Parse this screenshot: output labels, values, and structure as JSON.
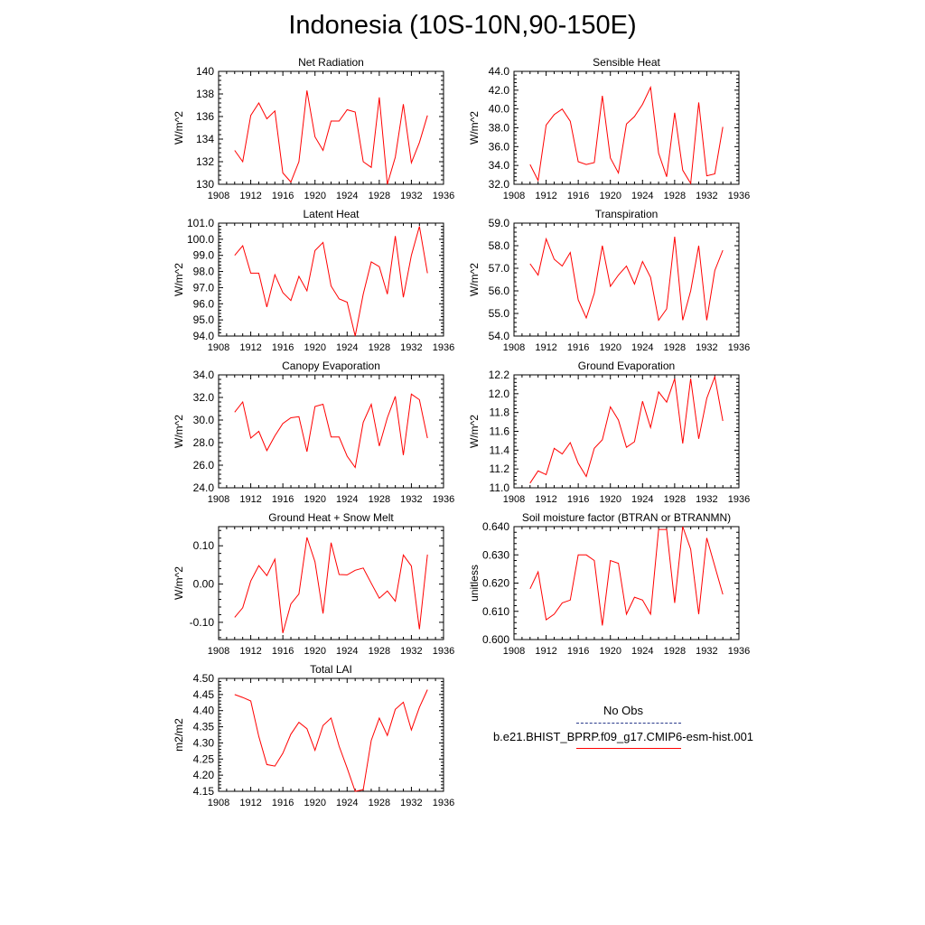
{
  "title": "Indonesia (10S-10N,90-150E)",
  "legend": {
    "obs_label": "No Obs",
    "model_label": "b.e21.BHIST_BPRP.f09_g17.CMIP6-esm-hist.001",
    "model_color": "#ff0000",
    "obs_color": "#2a3a8c"
  },
  "chart_data": [
    {
      "type": "line",
      "title": "Net Radiation",
      "ylabel": "W/m^2",
      "xlim": [
        1908,
        1936
      ],
      "xticks": [
        1908,
        1912,
        1916,
        1920,
        1924,
        1928,
        1932,
        1936
      ],
      "ylim": [
        130,
        140
      ],
      "yticks": [
        130,
        132,
        134,
        136,
        138,
        140
      ],
      "ytick_labels": [
        "130",
        "132",
        "134",
        "136",
        "138",
        "140"
      ],
      "x": [
        1910,
        1911,
        1912,
        1913,
        1914,
        1915,
        1916,
        1917,
        1918,
        1919,
        1920,
        1921,
        1922,
        1923,
        1924,
        1925,
        1926,
        1927,
        1928,
        1929,
        1930,
        1931,
        1932,
        1933,
        1934
      ],
      "series": [
        {
          "values": [
            133.0,
            132.0,
            136.1,
            137.2,
            135.8,
            136.5,
            131.0,
            130.2,
            132.0,
            138.3,
            134.2,
            133.0,
            135.6,
            135.6,
            136.6,
            136.4,
            132.0,
            131.5,
            137.7,
            130.0,
            132.4,
            137.1,
            131.9,
            133.7,
            136.1
          ]
        }
      ]
    },
    {
      "type": "line",
      "title": "Sensible Heat",
      "ylabel": "W/m^2",
      "xlim": [
        1908,
        1936
      ],
      "xticks": [
        1908,
        1912,
        1916,
        1920,
        1924,
        1928,
        1932,
        1936
      ],
      "ylim": [
        32,
        44
      ],
      "yticks": [
        32,
        34,
        36,
        38,
        40,
        42,
        44
      ],
      "ytick_labels": [
        "32.0",
        "34.0",
        "36.0",
        "38.0",
        "40.0",
        "42.0",
        "44.0"
      ],
      "x": [
        1910,
        1911,
        1912,
        1913,
        1914,
        1915,
        1916,
        1917,
        1918,
        1919,
        1920,
        1921,
        1922,
        1923,
        1924,
        1925,
        1926,
        1927,
        1928,
        1929,
        1930,
        1931,
        1932,
        1933,
        1934
      ],
      "series": [
        {
          "values": [
            34.1,
            32.4,
            38.3,
            39.4,
            40.0,
            38.7,
            34.4,
            34.1,
            34.3,
            41.4,
            34.8,
            33.2,
            38.4,
            39.2,
            40.5,
            42.3,
            35.3,
            32.8,
            39.6,
            33.5,
            32.1,
            40.7,
            32.9,
            33.1,
            38.1
          ]
        }
      ]
    },
    {
      "type": "line",
      "title": "Latent Heat",
      "ylabel": "W/m^2",
      "xlim": [
        1908,
        1936
      ],
      "xticks": [
        1908,
        1912,
        1916,
        1920,
        1924,
        1928,
        1932,
        1936
      ],
      "ylim": [
        94,
        101
      ],
      "yticks": [
        94,
        95,
        96,
        97,
        98,
        99,
        100,
        101
      ],
      "ytick_labels": [
        "94.0",
        "95.0",
        "96.0",
        "97.0",
        "98.0",
        "99.0",
        "100.0",
        "101.0"
      ],
      "x": [
        1910,
        1911,
        1912,
        1913,
        1914,
        1915,
        1916,
        1917,
        1918,
        1919,
        1920,
        1921,
        1922,
        1923,
        1924,
        1925,
        1926,
        1927,
        1928,
        1929,
        1930,
        1931,
        1932,
        1933,
        1934
      ],
      "series": [
        {
          "values": [
            99.0,
            99.6,
            97.9,
            97.9,
            95.8,
            97.8,
            96.7,
            96.2,
            97.7,
            96.8,
            99.3,
            99.8,
            97.1,
            96.3,
            96.1,
            94.0,
            96.6,
            98.6,
            98.3,
            96.6,
            100.2,
            96.4,
            99.0,
            100.8,
            97.9
          ]
        }
      ]
    },
    {
      "type": "line",
      "title": "Transpiration",
      "ylabel": "W/m^2",
      "xlim": [
        1908,
        1936
      ],
      "xticks": [
        1908,
        1912,
        1916,
        1920,
        1924,
        1928,
        1932,
        1936
      ],
      "ylim": [
        54,
        59
      ],
      "yticks": [
        54,
        55,
        56,
        57,
        58,
        59
      ],
      "ytick_labels": [
        "54.0",
        "55.0",
        "56.0",
        "57.0",
        "58.0",
        "59.0"
      ],
      "x": [
        1910,
        1911,
        1912,
        1913,
        1914,
        1915,
        1916,
        1917,
        1918,
        1919,
        1920,
        1921,
        1922,
        1923,
        1924,
        1925,
        1926,
        1927,
        1928,
        1929,
        1930,
        1931,
        1932,
        1933,
        1934
      ],
      "series": [
        {
          "values": [
            57.2,
            56.7,
            58.3,
            57.4,
            57.1,
            57.7,
            55.6,
            54.8,
            55.9,
            58.0,
            56.2,
            56.7,
            57.1,
            56.3,
            57.3,
            56.6,
            54.7,
            55.2,
            58.4,
            54.7,
            56.0,
            58.0,
            54.7,
            56.9,
            57.8
          ]
        }
      ]
    },
    {
      "type": "line",
      "title": "Canopy Evaporation",
      "ylabel": "W/m^2",
      "xlim": [
        1908,
        1936
      ],
      "xticks": [
        1908,
        1912,
        1916,
        1920,
        1924,
        1928,
        1932,
        1936
      ],
      "ylim": [
        24,
        34
      ],
      "yticks": [
        24,
        26,
        28,
        30,
        32,
        34
      ],
      "ytick_labels": [
        "24.0",
        "26.0",
        "28.0",
        "30.0",
        "32.0",
        "34.0"
      ],
      "x": [
        1910,
        1911,
        1912,
        1913,
        1914,
        1915,
        1916,
        1917,
        1918,
        1919,
        1920,
        1921,
        1922,
        1923,
        1924,
        1925,
        1926,
        1927,
        1928,
        1929,
        1930,
        1931,
        1932,
        1933,
        1934
      ],
      "series": [
        {
          "values": [
            30.7,
            31.6,
            28.4,
            29.0,
            27.3,
            28.6,
            29.7,
            30.2,
            30.3,
            27.2,
            31.2,
            31.4,
            28.5,
            28.5,
            26.8,
            25.8,
            29.8,
            31.4,
            27.7,
            30.2,
            32.1,
            26.9,
            32.3,
            31.8,
            28.4
          ]
        }
      ]
    },
    {
      "type": "line",
      "title": "Ground Evaporation",
      "ylabel": "W/m^2",
      "xlim": [
        1908,
        1936
      ],
      "xticks": [
        1908,
        1912,
        1916,
        1920,
        1924,
        1928,
        1932,
        1936
      ],
      "ylim": [
        11.0,
        12.2
      ],
      "yticks": [
        11.0,
        11.2,
        11.4,
        11.6,
        11.8,
        12.0,
        12.2
      ],
      "ytick_labels": [
        "11.0",
        "11.2",
        "11.4",
        "11.6",
        "11.8",
        "12.0",
        "12.2"
      ],
      "x": [
        1910,
        1911,
        1912,
        1913,
        1914,
        1915,
        1916,
        1917,
        1918,
        1919,
        1920,
        1921,
        1922,
        1923,
        1924,
        1925,
        1926,
        1927,
        1928,
        1929,
        1930,
        1931,
        1932,
        1933,
        1934
      ],
      "series": [
        {
          "values": [
            11.05,
            11.18,
            11.14,
            11.42,
            11.36,
            11.48,
            11.26,
            11.12,
            11.42,
            11.51,
            11.86,
            11.72,
            11.43,
            11.49,
            11.92,
            11.64,
            12.02,
            11.91,
            12.16,
            11.47,
            12.16,
            11.52,
            11.95,
            12.18,
            11.71
          ]
        }
      ]
    },
    {
      "type": "line",
      "title": "Ground Heat + Snow Melt",
      "ylabel": "W/m^2",
      "xlim": [
        1908,
        1936
      ],
      "xticks": [
        1908,
        1912,
        1916,
        1920,
        1924,
        1928,
        1932,
        1936
      ],
      "ylim": [
        -0.145,
        0.15
      ],
      "yticks": [
        -0.1,
        0.0,
        0.1
      ],
      "ytick_labels": [
        "-0.10",
        "0.00",
        "0.10"
      ],
      "x": [
        1910,
        1911,
        1912,
        1913,
        1914,
        1915,
        1916,
        1917,
        1918,
        1919,
        1920,
        1921,
        1922,
        1923,
        1924,
        1925,
        1926,
        1927,
        1928,
        1929,
        1930,
        1931,
        1932,
        1933,
        1934
      ],
      "series": [
        {
          "values": [
            -0.087,
            -0.062,
            0.008,
            0.048,
            0.022,
            0.065,
            -0.128,
            -0.052,
            -0.026,
            0.122,
            0.058,
            -0.077,
            0.108,
            0.025,
            0.024,
            0.036,
            0.042,
            0.002,
            -0.037,
            -0.018,
            -0.045,
            0.076,
            0.047,
            -0.118,
            0.077
          ]
        }
      ]
    },
    {
      "type": "line",
      "title": "Soil moisture factor (BTRAN or BTRANMN)",
      "ylabel": "unitless",
      "xlim": [
        1908,
        1936
      ],
      "xticks": [
        1908,
        1912,
        1916,
        1920,
        1924,
        1928,
        1932,
        1936
      ],
      "ylim": [
        0.6,
        0.64
      ],
      "yticks": [
        0.6,
        0.61,
        0.62,
        0.63,
        0.64
      ],
      "ytick_labels": [
        "0.600",
        "0.610",
        "0.620",
        "0.630",
        "0.640"
      ],
      "x": [
        1910,
        1911,
        1912,
        1913,
        1914,
        1915,
        1916,
        1917,
        1918,
        1919,
        1920,
        1921,
        1922,
        1923,
        1924,
        1925,
        1926,
        1927,
        1928,
        1929,
        1930,
        1931,
        1932,
        1933,
        1934
      ],
      "series": [
        {
          "values": [
            0.618,
            0.624,
            0.607,
            0.609,
            0.613,
            0.614,
            0.63,
            0.63,
            0.628,
            0.605,
            0.628,
            0.627,
            0.609,
            0.615,
            0.614,
            0.609,
            0.639,
            0.639,
            0.613,
            0.64,
            0.632,
            0.609,
            0.636,
            0.626,
            0.616
          ]
        }
      ]
    },
    {
      "type": "line",
      "title": "Total LAI",
      "ylabel": "m2/m2",
      "xlim": [
        1908,
        1936
      ],
      "xticks": [
        1908,
        1912,
        1916,
        1920,
        1924,
        1928,
        1932,
        1936
      ],
      "ylim": [
        4.15,
        4.5
      ],
      "yticks": [
        4.15,
        4.2,
        4.25,
        4.3,
        4.35,
        4.4,
        4.45,
        4.5
      ],
      "ytick_labels": [
        "4.15",
        "4.20",
        "4.25",
        "4.30",
        "4.35",
        "4.40",
        "4.45",
        "4.50"
      ],
      "x": [
        1910,
        1911,
        1912,
        1913,
        1914,
        1915,
        1916,
        1917,
        1918,
        1919,
        1920,
        1921,
        1922,
        1923,
        1924,
        1925,
        1926,
        1927,
        1928,
        1929,
        1930,
        1931,
        1932,
        1933,
        1934
      ],
      "series": [
        {
          "values": [
            4.45,
            4.441,
            4.43,
            4.32,
            4.233,
            4.228,
            4.268,
            4.327,
            4.364,
            4.344,
            4.277,
            4.354,
            4.377,
            4.29,
            4.222,
            4.15,
            4.155,
            4.308,
            4.377,
            4.323,
            4.404,
            4.426,
            4.34,
            4.41,
            4.465
          ]
        }
      ]
    }
  ]
}
